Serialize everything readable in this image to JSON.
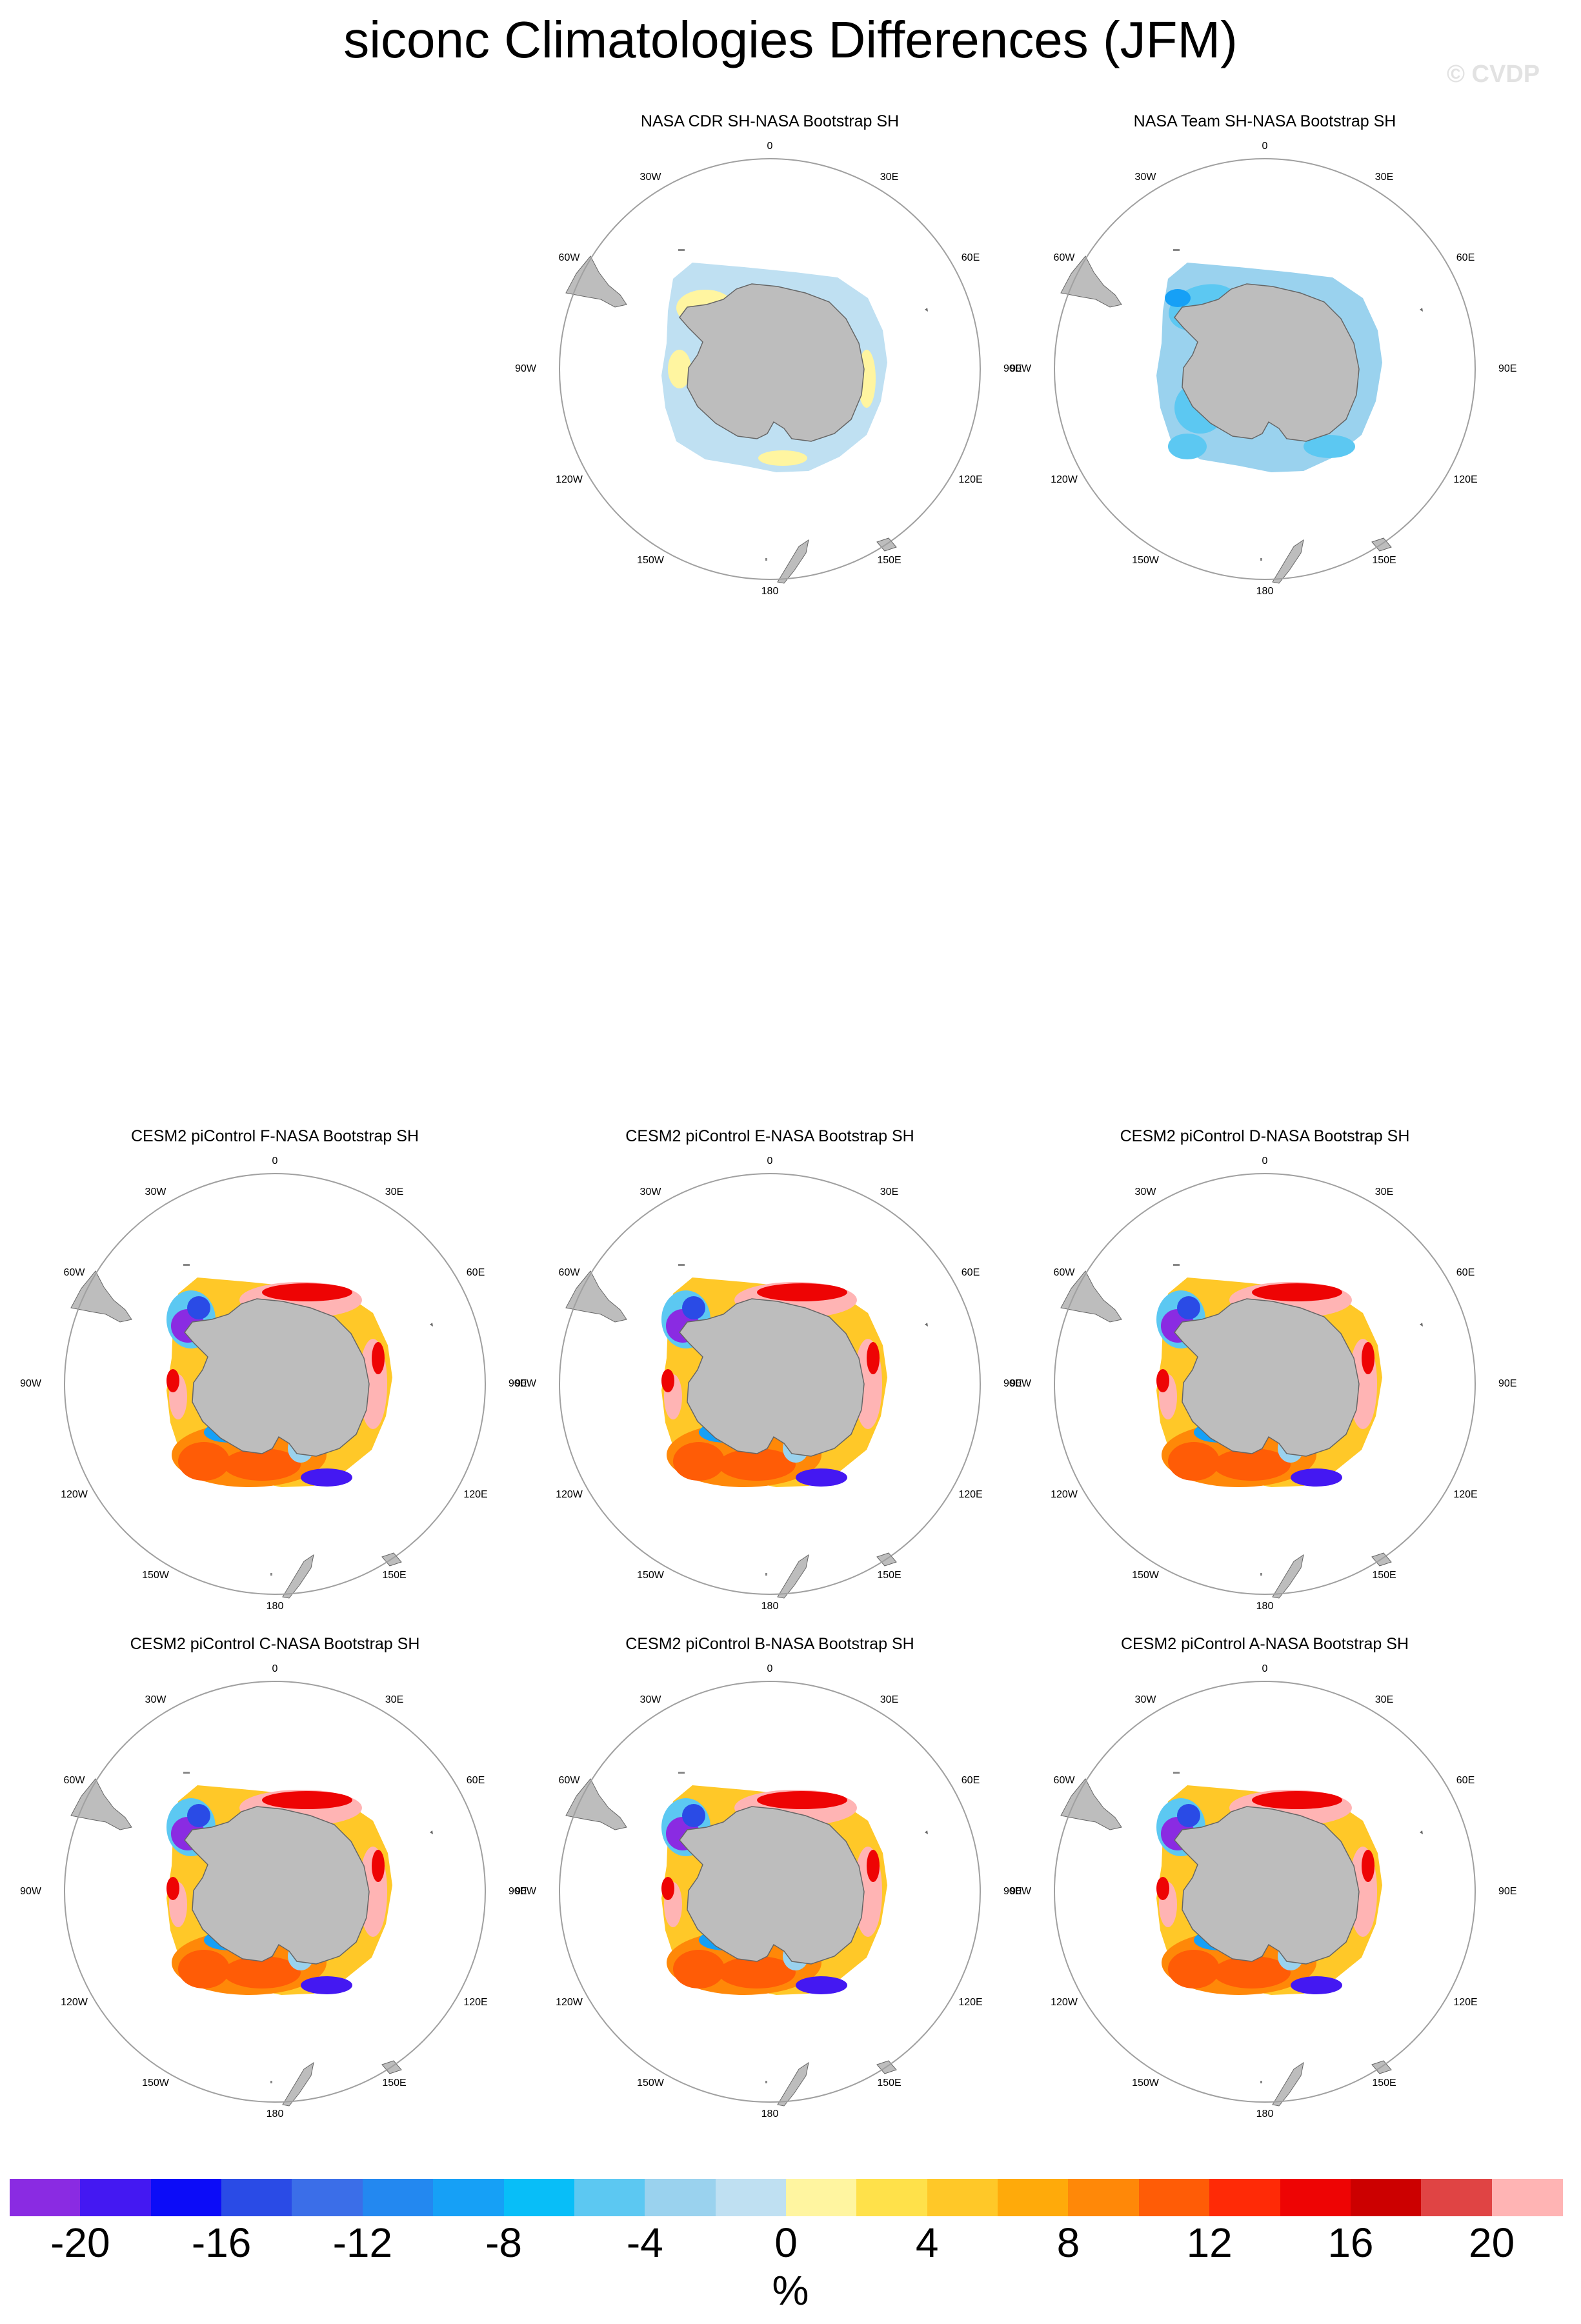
{
  "title": "siconc Climatologies Differences (JFM)",
  "copyright": "© CVDP",
  "lon_labels": {
    "top": "0",
    "tr30": "30E",
    "tr60": "60E",
    "right": "90E",
    "br120": "120E",
    "br150": "150E",
    "bottom": "180",
    "bl150": "150W",
    "bl120": "120W",
    "left": "90W",
    "tl60": "60W",
    "tl30": "30W"
  },
  "panels": [
    {
      "title": "NASA CDR SH-NASA Bootstrap SH",
      "style": "cdr"
    },
    {
      "title": "NASA Team SH-NASA Bootstrap SH",
      "style": "team"
    },
    {
      "title": "CESM2 piControl F-NASA Bootstrap SH",
      "style": "model"
    },
    {
      "title": "CESM2 piControl E-NASA Bootstrap SH",
      "style": "model"
    },
    {
      "title": "CESM2 piControl D-NASA Bootstrap SH",
      "style": "model"
    },
    {
      "title": "CESM2 piControl C-NASA Bootstrap SH",
      "style": "model"
    },
    {
      "title": "CESM2 piControl B-NASA Bootstrap SH",
      "style": "model"
    },
    {
      "title": "CESM2 piControl A-NASA Bootstrap SH",
      "style": "model"
    }
  ],
  "colorbar": {
    "unit": "%",
    "colors": [
      "#8a2be2",
      "#4418f2",
      "#0c0cf8",
      "#2a4be6",
      "#3b6ee8",
      "#2388f0",
      "#16a0f6",
      "#08bef8",
      "#5cc8f2",
      "#9ad2ee",
      "#bfe0f2",
      "#fff5a0",
      "#ffe14a",
      "#ffc828",
      "#ffaa0a",
      "#ff8808",
      "#ff5c06",
      "#ff2a06",
      "#ee0404",
      "#cc0000",
      "#e04444",
      "#ffb4b4"
    ],
    "tick_values": [
      "-20",
      "-16",
      "-12",
      "-8",
      "-4",
      "0",
      "4",
      "8",
      "12",
      "16",
      "20"
    ]
  }
}
